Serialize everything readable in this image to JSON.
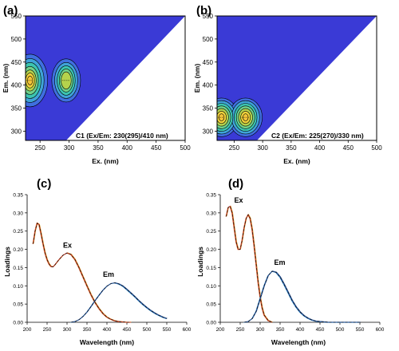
{
  "chart_data": [
    {
      "panel": "(a)",
      "type": "heatmap",
      "subtype": "contour",
      "xlabel": "Ex. (nm)",
      "ylabel": "Em. (nm)",
      "xlim": [
        225,
        500
      ],
      "ylim": [
        280,
        550
      ],
      "xticks": [
        250,
        300,
        350,
        400,
        450,
        500
      ],
      "yticks": [
        300,
        350,
        400,
        450,
        500,
        550
      ],
      "annotation": "C1 (Ex/Em: 230(295)/410 nm)",
      "background_color": "#3a3ad6",
      "peaks": [
        {
          "ex": 230,
          "em": 410,
          "intensity": 1.0
        },
        {
          "ex": 295,
          "em": 410,
          "intensity": 0.62
        }
      ]
    },
    {
      "panel": "(b)",
      "type": "heatmap",
      "subtype": "contour",
      "xlabel": "Ex. (nm)",
      "ylabel": "Em. (nm)",
      "xlim": [
        220,
        500
      ],
      "ylim": [
        280,
        550
      ],
      "xticks": [
        250,
        300,
        350,
        400,
        450,
        500
      ],
      "yticks": [
        300,
        350,
        400,
        450,
        500,
        550
      ],
      "annotation": "C2 (Ex/Em: 225(270)/330 nm)",
      "background_color": "#3a3ad6",
      "peaks": [
        {
          "ex": 225,
          "em": 330,
          "intensity": 1.0
        },
        {
          "ex": 270,
          "em": 330,
          "intensity": 0.95
        }
      ]
    },
    {
      "panel": "(c)",
      "type": "line",
      "xlabel": "Wavelength (nm)",
      "ylabel": "Loadings",
      "xlim": [
        200,
        600
      ],
      "ylim": [
        0,
        0.35
      ],
      "xticks": [
        200,
        250,
        300,
        350,
        400,
        450,
        500,
        550,
        600
      ],
      "yticks": [
        0.0,
        0.05,
        0.1,
        0.15,
        0.2,
        0.25,
        0.3,
        0.35
      ],
      "ytick_labels": [
        "0.00",
        "0.05",
        "0.10",
        "0.15",
        "0.20",
        "0.25",
        "0.30",
        "0.35"
      ],
      "series": [
        {
          "name": "Ex",
          "color": "#c0392b",
          "x": [
            215,
            220,
            225,
            230,
            235,
            240,
            245,
            250,
            255,
            260,
            265,
            270,
            280,
            290,
            300,
            310,
            320,
            330,
            340,
            350,
            360,
            370,
            380,
            390,
            400,
            410,
            420,
            430,
            440,
            450,
            460
          ],
          "y": [
            0.215,
            0.25,
            0.272,
            0.268,
            0.243,
            0.215,
            0.19,
            0.172,
            0.16,
            0.153,
            0.152,
            0.158,
            0.172,
            0.184,
            0.19,
            0.186,
            0.172,
            0.15,
            0.125,
            0.1,
            0.076,
            0.055,
            0.038,
            0.024,
            0.014,
            0.008,
            0.004,
            0.002,
            0.001,
            0.0,
            0.0
          ]
        },
        {
          "name": "Em",
          "color": "#2c5aa0",
          "x": [
            310,
            320,
            330,
            340,
            350,
            360,
            370,
            380,
            390,
            400,
            410,
            420,
            430,
            440,
            450,
            460,
            470,
            480,
            490,
            500,
            510,
            520,
            530,
            540,
            550
          ],
          "y": [
            0.0,
            0.002,
            0.007,
            0.016,
            0.028,
            0.043,
            0.059,
            0.074,
            0.088,
            0.099,
            0.106,
            0.108,
            0.105,
            0.099,
            0.09,
            0.08,
            0.07,
            0.059,
            0.049,
            0.04,
            0.032,
            0.025,
            0.019,
            0.014,
            0.01
          ]
        }
      ]
    },
    {
      "panel": "(d)",
      "type": "line",
      "xlabel": "Wavelength (nm)",
      "ylabel": "Loadings",
      "xlim": [
        200,
        600
      ],
      "ylim": [
        0,
        0.35
      ],
      "xticks": [
        200,
        250,
        300,
        350,
        400,
        450,
        500,
        550,
        600
      ],
      "yticks": [
        0.0,
        0.05,
        0.1,
        0.15,
        0.2,
        0.25,
        0.3,
        0.35
      ],
      "ytick_labels": [
        "0.00",
        "0.05",
        "0.10",
        "0.15",
        "0.20",
        "0.25",
        "0.30",
        "0.35"
      ],
      "series": [
        {
          "name": "Ex",
          "color": "#c0392b",
          "x": [
            215,
            220,
            225,
            230,
            235,
            240,
            245,
            250,
            255,
            260,
            265,
            270,
            275,
            280,
            285,
            290,
            295,
            300,
            305,
            310,
            320,
            330
          ],
          "y": [
            0.29,
            0.315,
            0.318,
            0.3,
            0.26,
            0.22,
            0.2,
            0.2,
            0.225,
            0.26,
            0.285,
            0.295,
            0.285,
            0.255,
            0.21,
            0.16,
            0.11,
            0.07,
            0.04,
            0.02,
            0.005,
            0.0
          ]
        },
        {
          "name": "Em",
          "color": "#2c5aa0",
          "x": [
            260,
            270,
            280,
            290,
            300,
            310,
            320,
            330,
            340,
            350,
            360,
            370,
            380,
            390,
            400,
            410,
            420,
            430,
            440,
            450,
            460,
            470,
            480,
            500,
            550
          ],
          "y": [
            0.0,
            0.002,
            0.01,
            0.03,
            0.065,
            0.1,
            0.128,
            0.14,
            0.137,
            0.124,
            0.104,
            0.082,
            0.06,
            0.042,
            0.028,
            0.018,
            0.011,
            0.006,
            0.003,
            0.002,
            0.001,
            0.0,
            0.0,
            0.0,
            0.0
          ]
        }
      ]
    }
  ]
}
